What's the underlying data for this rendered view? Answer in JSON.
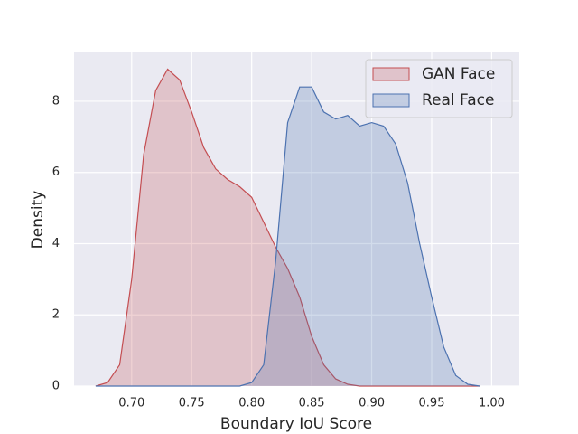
{
  "chart_data": {
    "type": "area",
    "xlabel": "Boundary IoU Score",
    "ylabel": "Density",
    "x": [
      0.67,
      0.68,
      0.69,
      0.7,
      0.71,
      0.72,
      0.73,
      0.74,
      0.75,
      0.76,
      0.77,
      0.78,
      0.79,
      0.8,
      0.81,
      0.82,
      0.83,
      0.84,
      0.85,
      0.86,
      0.87,
      0.88,
      0.89,
      0.9,
      0.91,
      0.92,
      0.93,
      0.94,
      0.95,
      0.96,
      0.97,
      0.98,
      0.99
    ],
    "series": [
      {
        "name": "GAN Face",
        "color": "#c44e52",
        "values": [
          0,
          0.1,
          0.6,
          3.0,
          6.5,
          8.3,
          8.9,
          8.6,
          7.7,
          6.7,
          6.1,
          5.8,
          5.6,
          5.3,
          4.6,
          3.9,
          3.3,
          2.5,
          1.4,
          0.6,
          0.2,
          0.05,
          0,
          0,
          0,
          0,
          0,
          0,
          0,
          0,
          0,
          0,
          0
        ]
      },
      {
        "name": "Real Face",
        "color": "#4c72b0",
        "values": [
          0,
          0,
          0,
          0,
          0,
          0,
          0,
          0,
          0,
          0,
          0,
          0,
          0,
          0.1,
          0.6,
          3.5,
          7.4,
          8.4,
          8.4,
          7.7,
          7.5,
          7.6,
          7.3,
          7.4,
          7.3,
          6.8,
          5.7,
          4.0,
          2.5,
          1.1,
          0.3,
          0.05,
          0
        ]
      }
    ],
    "xlim": [
      0.652,
      1.023
    ],
    "ylim": [
      0,
      9.37
    ],
    "xticks": [
      {
        "value": 0.7,
        "label": "0.70"
      },
      {
        "value": 0.75,
        "label": "0.75"
      },
      {
        "value": 0.8,
        "label": "0.80"
      },
      {
        "value": 0.85,
        "label": "0.85"
      },
      {
        "value": 0.9,
        "label": "0.90"
      },
      {
        "value": 0.95,
        "label": "0.95"
      },
      {
        "value": 1.0,
        "label": "1.00"
      }
    ],
    "yticks": [
      0,
      2,
      4,
      6,
      8
    ],
    "grid": true,
    "legend": "upper right"
  }
}
